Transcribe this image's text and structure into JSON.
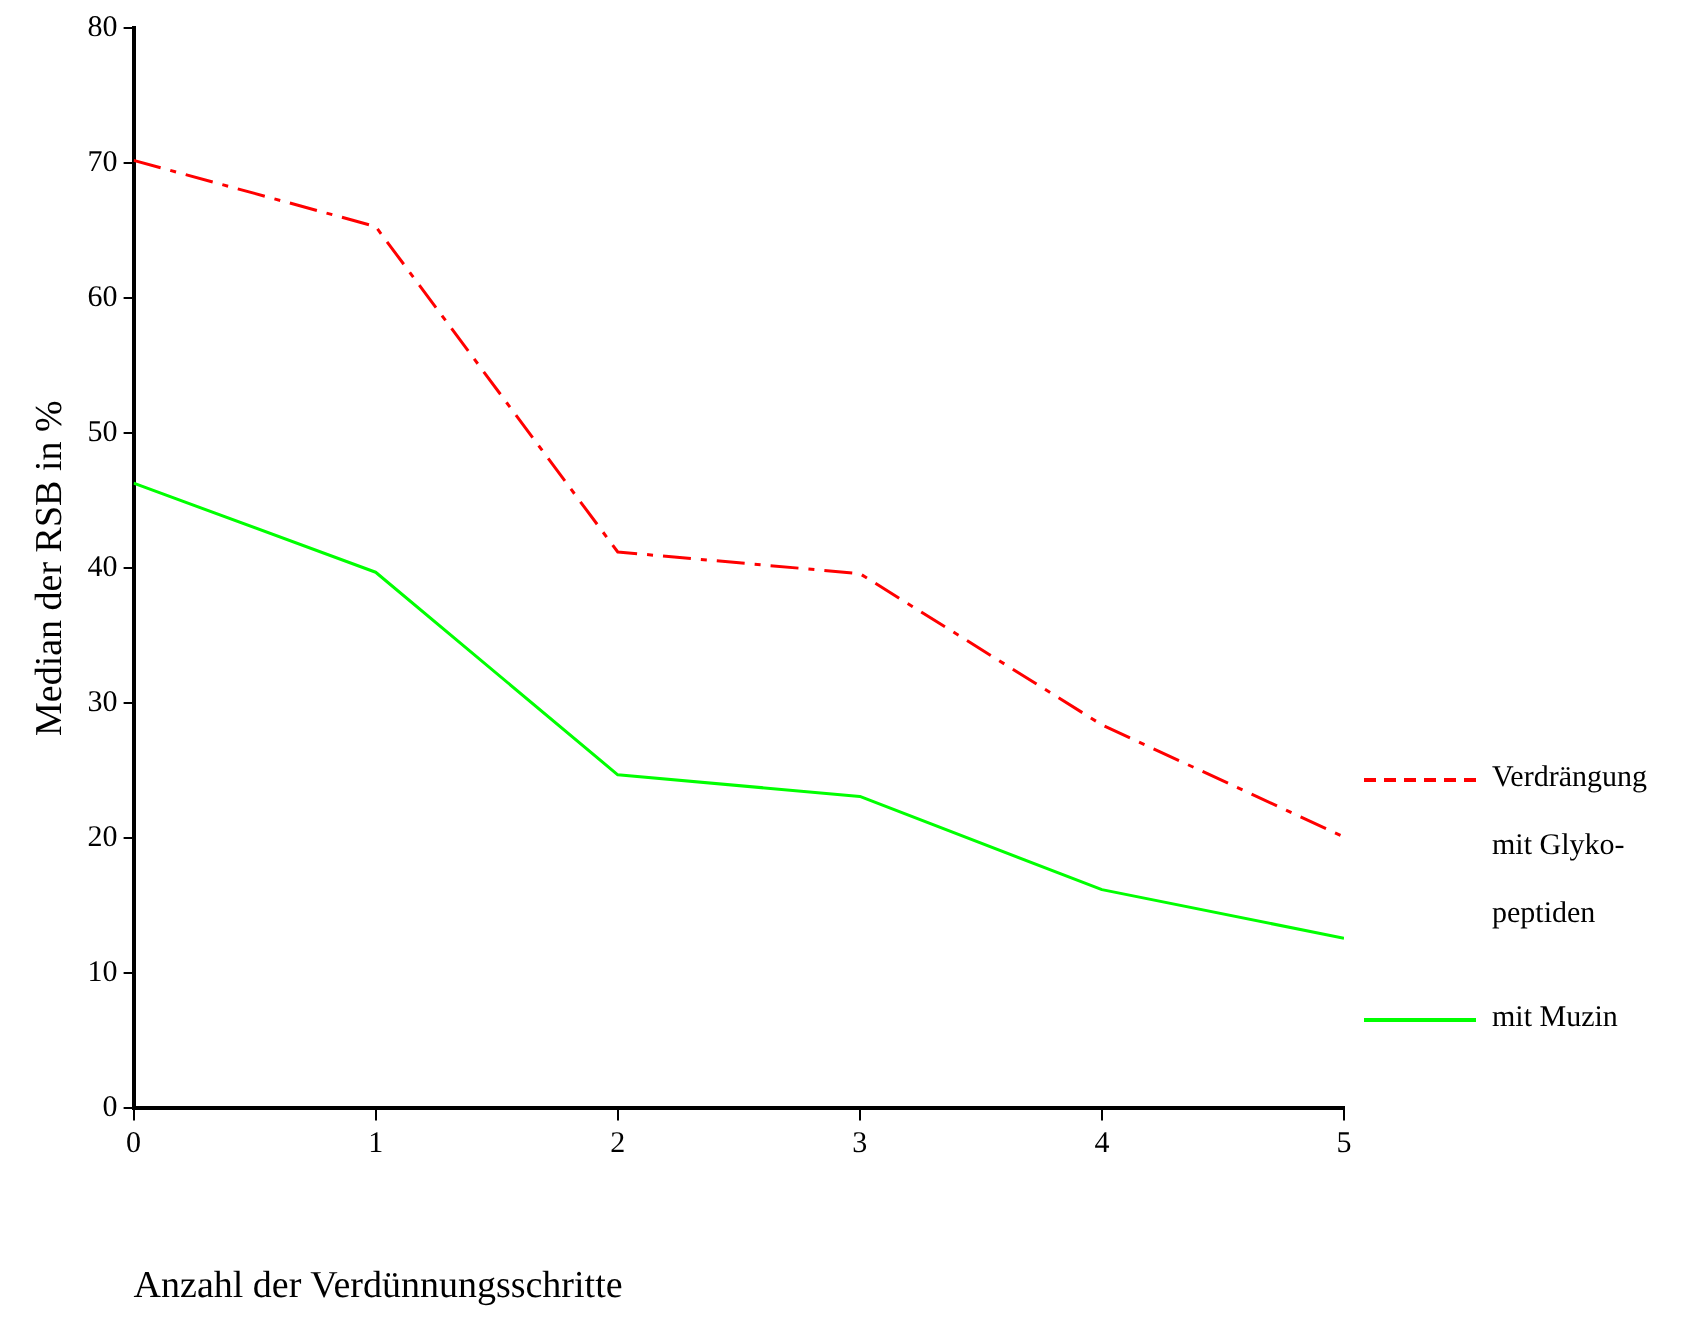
{
  "chart_data": {
    "type": "line",
    "xlabel": "Anzahl der Verdünnungsschritte",
    "ylabel": "Median der RSB in %",
    "x": [
      0,
      1,
      2,
      3,
      4,
      5
    ],
    "xlim": [
      0,
      5
    ],
    "xticks": [
      0,
      1,
      2,
      3,
      4,
      5
    ],
    "ylim": [
      0,
      80
    ],
    "yticks": [
      0,
      10,
      20,
      30,
      40,
      50,
      60,
      70,
      80
    ],
    "grid": false,
    "legend": "right",
    "marker": "none",
    "series": [
      {
        "name": "Verdrängung mit Glyko-peptiden",
        "color": "#ff0000",
        "line_style": "dashed",
        "values": [
          70.2,
          65.3,
          41.2,
          39.6,
          28.4,
          20.1
        ]
      },
      {
        "name": "mit Muzin",
        "color": "#00ff00",
        "line_style": "solid",
        "values": [
          46.3,
          39.7,
          24.7,
          23.1,
          16.2,
          12.6
        ]
      }
    ]
  }
}
